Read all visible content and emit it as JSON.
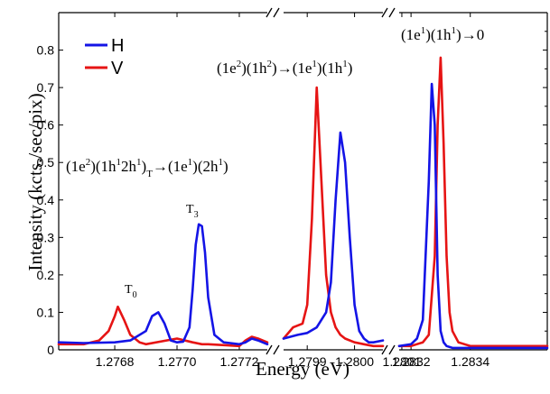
{
  "chart_data": {
    "type": "line",
    "xlabel": "Energy (eV)",
    "ylabel": "Intensity (kcts./sec/pix)",
    "ylim": [
      0,
      0.9
    ],
    "y_ticks": [
      "0",
      "0.1",
      "0.2",
      "0.3",
      "0.4",
      "0.5",
      "0.6",
      "0.7",
      "0.8"
    ],
    "y_tick_values": [
      0,
      0.1,
      0.2,
      0.3,
      0.4,
      0.5,
      0.6,
      0.7,
      0.8
    ],
    "axis_break": true,
    "legend": {
      "placement": "top-left",
      "entries": [
        "H",
        "V"
      ]
    },
    "colors": {
      "H": "#1414e6",
      "V": "#e61414"
    },
    "panels": [
      {
        "xlim": [
          1.27662,
          1.27729
        ],
        "x_ticks": [
          "1.2768",
          "1.2770",
          "1.2772"
        ],
        "x_tick_values": [
          1.2768,
          1.277,
          1.2772
        ],
        "series": [
          {
            "name": "H",
            "x": [
              1.27662,
              1.2767,
              1.2768,
              1.27685,
              1.2769,
              1.27692,
              1.27694,
              1.27696,
              1.27698,
              1.277,
              1.27702,
              1.27704,
              1.27705,
              1.27706,
              1.27707,
              1.27708,
              1.27709,
              1.2771,
              1.27712,
              1.27715,
              1.2772,
              1.27722,
              1.27724,
              1.27726,
              1.27729
            ],
            "y": [
              0.02,
              0.018,
              0.02,
              0.025,
              0.05,
              0.09,
              0.1,
              0.07,
              0.025,
              0.02,
              0.022,
              0.06,
              0.16,
              0.28,
              0.335,
              0.33,
              0.26,
              0.14,
              0.04,
              0.02,
              0.015,
              0.02,
              0.03,
              0.025,
              0.015
            ]
          },
          {
            "name": "V",
            "x": [
              1.27662,
              1.2767,
              1.27675,
              1.27678,
              1.2768,
              1.27681,
              1.27683,
              1.27685,
              1.27688,
              1.2769,
              1.277,
              1.27705,
              1.27708,
              1.2771,
              1.2772,
              1.27722,
              1.27724,
              1.27726,
              1.27729
            ],
            "y": [
              0.015,
              0.015,
              0.025,
              0.05,
              0.09,
              0.115,
              0.08,
              0.04,
              0.02,
              0.015,
              0.03,
              0.02,
              0.015,
              0.015,
              0.01,
              0.025,
              0.035,
              0.03,
              0.02
            ]
          }
        ]
      },
      {
        "xlim": [
          1.27985,
          1.28006
        ],
        "x_ticks": [
          "1.2799",
          "1.2800",
          "1.2801"
        ],
        "x_tick_values": [
          1.2799,
          1.28,
          1.2801
        ],
        "series": [
          {
            "name": "H",
            "x": [
              1.27985,
              1.27988,
              1.2799,
              1.27992,
              1.27994,
              1.27995,
              1.27996,
              1.27997,
              1.27998,
              1.27999,
              1.28,
              1.28001,
              1.28002,
              1.28003,
              1.28004,
              1.28006
            ],
            "y": [
              0.03,
              0.04,
              0.045,
              0.06,
              0.1,
              0.18,
              0.4,
              0.58,
              0.5,
              0.3,
              0.12,
              0.05,
              0.03,
              0.02,
              0.02,
              0.025
            ]
          },
          {
            "name": "V",
            "x": [
              1.27985,
              1.27987,
              1.27989,
              1.2799,
              1.27991,
              1.27992,
              1.27993,
              1.27994,
              1.27995,
              1.27996,
              1.27997,
              1.27998,
              1.28,
              1.28002,
              1.28004,
              1.28006
            ],
            "y": [
              0.03,
              0.06,
              0.07,
              0.12,
              0.35,
              0.7,
              0.45,
              0.2,
              0.1,
              0.06,
              0.04,
              0.03,
              0.02,
              0.015,
              0.01,
              0.01
            ]
          }
        ]
      },
      {
        "xlim": [
          1.28316,
          1.28366
        ],
        "x_ticks": [
          "1.2832",
          "1.2834"
        ],
        "x_tick_values": [
          1.2832,
          1.2834
        ],
        "series": [
          {
            "name": "H",
            "x": [
              1.28316,
              1.2832,
              1.28322,
              1.28324,
              1.28326,
              1.28327,
              1.28328,
              1.28329,
              1.2833,
              1.28331,
              1.28332,
              1.28334,
              1.28336,
              1.28345,
              1.28366
            ],
            "y": [
              0.01,
              0.015,
              0.03,
              0.08,
              0.45,
              0.71,
              0.6,
              0.2,
              0.05,
              0.02,
              0.01,
              0.005,
              0.005,
              0.005,
              0.005
            ]
          },
          {
            "name": "V",
            "x": [
              1.28316,
              1.2832,
              1.28324,
              1.28326,
              1.28328,
              1.28329,
              1.2833,
              1.28331,
              1.28332,
              1.28333,
              1.28334,
              1.28336,
              1.2834,
              1.28366
            ],
            "y": [
              0.01,
              0.01,
              0.02,
              0.04,
              0.25,
              0.6,
              0.78,
              0.55,
              0.25,
              0.1,
              0.05,
              0.02,
              0.01,
              0.01
            ]
          }
        ]
      }
    ],
    "annotations": {
      "t0": {
        "main": "T",
        "sub": "0"
      },
      "t3": {
        "main": "T",
        "sub": "3"
      },
      "trans1": {
        "a": "(1e",
        "a_sup": "2",
        "b": ")(1h",
        "b_sup": "1",
        "c": "2h",
        "c_sup": "1",
        "d": ")",
        "d_sub": "T",
        "e": "→(1e",
        "e_sup": "1",
        "f": ")(2h",
        "f_sup": "1",
        "g": ")"
      },
      "trans2": {
        "a": "(1e",
        "a_sup": "2",
        "b": ")(1h",
        "b_sup": "2",
        "c": ")→(1e",
        "c_sup": "1",
        "d": ")(1h",
        "d_sup": "1",
        "e": ")"
      },
      "trans3": {
        "a": "(1e",
        "a_sup": "1",
        "b": ")(1h",
        "b_sup": "1",
        "c": ")→0"
      }
    }
  }
}
